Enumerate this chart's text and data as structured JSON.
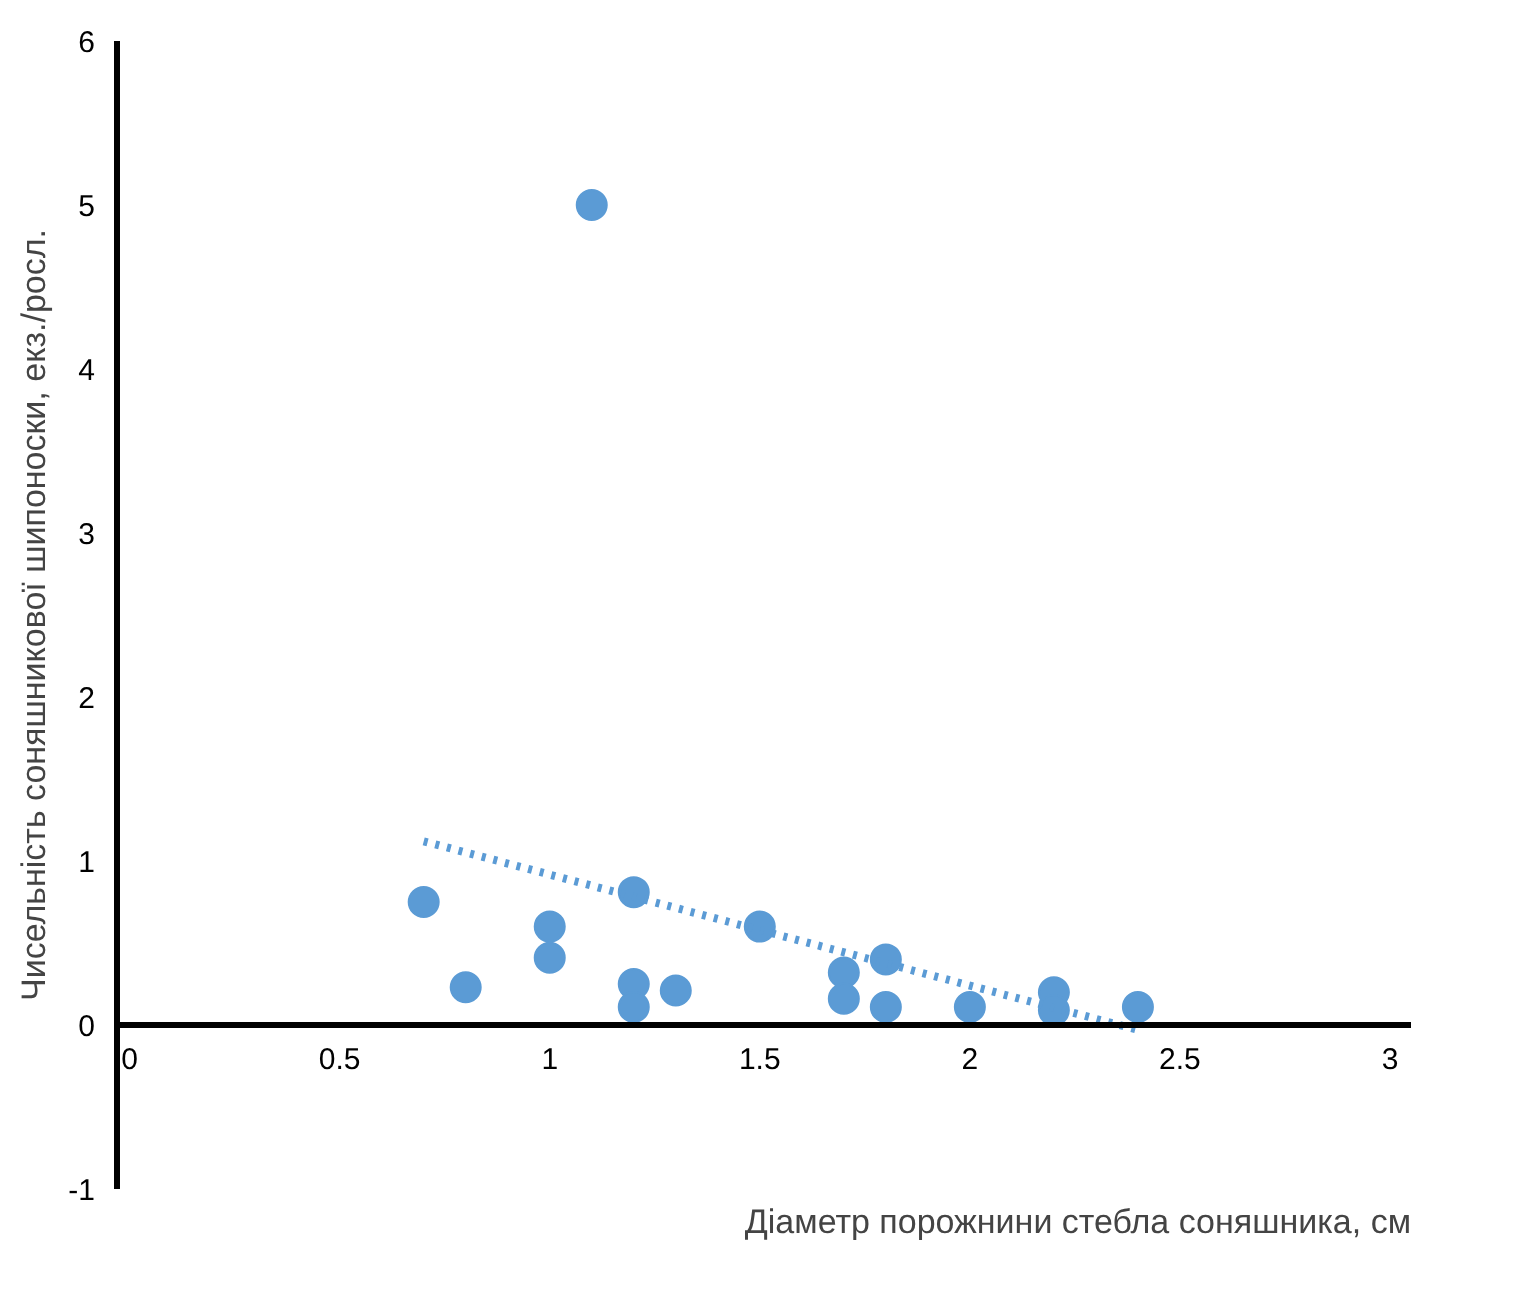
{
  "chart_data": {
    "type": "scatter",
    "xlabel": "Діаметр порожнини стебла соняшника, см",
    "ylabel": "Чисельність соняшникової шипоноски, екз./росл.",
    "xlim": [
      -0.03,
      3.05
    ],
    "ylim": [
      -1,
      6
    ],
    "xticks": [
      0,
      0.5,
      1,
      1.5,
      2,
      2.5,
      3
    ],
    "yticks": [
      -1,
      0,
      1,
      2,
      3,
      4,
      5,
      6
    ],
    "grid": false,
    "marker": "circle",
    "series": [
      {
        "color": "#5b9bd5",
        "x": [
          0.7,
          0.8,
          1.0,
          1.0,
          1.1,
          1.2,
          1.2,
          1.2,
          1.3,
          1.5,
          1.7,
          1.7,
          1.8,
          1.8,
          2.0,
          2.2,
          2.2,
          2.4
        ],
        "values": [
          0.75,
          0.23,
          0.6,
          0.41,
          5.0,
          0.81,
          0.25,
          0.11,
          0.21,
          0.6,
          0.32,
          0.16,
          0.4,
          0.11,
          0.11,
          0.2,
          0.09,
          0.11
        ]
      },
      {
        "type": "line",
        "marker": "none",
        "color": "#5b9bd5",
        "line_style": "dotted",
        "x": [
          0.7,
          2.4
        ],
        "values": [
          1.12,
          -0.03
        ]
      }
    ]
  }
}
